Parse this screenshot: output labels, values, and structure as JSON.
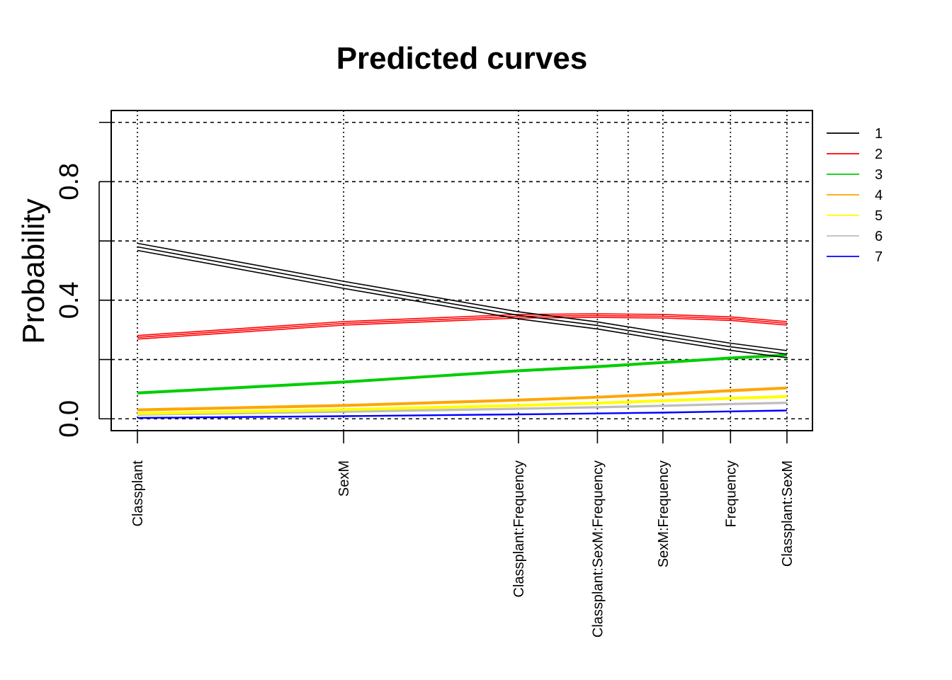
{
  "chart_data": {
    "type": "line",
    "title": "Predicted curves",
    "xlabel": "",
    "ylabel": "Probability",
    "ylim": [
      -0.04,
      1.04
    ],
    "yticks": [
      0.0,
      0.4,
      0.8
    ],
    "ytick_labels": [
      "0.0",
      "0.4",
      "0.8"
    ],
    "ygrid": [
      0.0,
      0.2,
      0.4,
      0.6,
      0.8,
      1.0
    ],
    "x_positions": [
      0.0,
      0.3175,
      0.5867,
      0.7082,
      0.809,
      0.9131,
      1.0
    ],
    "categories": [
      "Classplant",
      "SexM",
      "Classplant:Frequency",
      "Classplant:SexM:Frequency",
      "SexM:Frequency",
      "Frequency",
      "Classplant:SexM"
    ],
    "extra_vgrid": [
      0.7555
    ],
    "grid": true,
    "legend_position": "top-right",
    "series": [
      {
        "name": "1",
        "color": "#000000",
        "values": [
          0.58,
          0.452,
          0.349,
          0.315,
          0.279,
          0.243,
          0.218
        ],
        "band": 0.012
      },
      {
        "name": "2",
        "color": "#ff0000",
        "values": [
          0.275,
          0.322,
          0.346,
          0.348,
          0.346,
          0.338,
          0.322
        ],
        "band": 0.006
      },
      {
        "name": "3",
        "color": "#00cd00",
        "values": [
          0.087,
          0.124,
          0.162,
          0.176,
          0.19,
          0.205,
          0.215
        ],
        "band": 0.003
      },
      {
        "name": "4",
        "color": "#ffa500",
        "values": [
          0.03,
          0.045,
          0.063,
          0.073,
          0.083,
          0.095,
          0.104
        ],
        "band": 0.003
      },
      {
        "name": "5",
        "color": "#ffff00",
        "values": [
          0.018,
          0.031,
          0.045,
          0.053,
          0.061,
          0.069,
          0.075
        ],
        "band": 0.003
      },
      {
        "name": "6",
        "color": "#bebebe",
        "values": [
          0.014,
          0.024,
          0.034,
          0.039,
          0.044,
          0.05,
          0.054
        ],
        "band": 0.002
      },
      {
        "name": "7",
        "color": "#0000ff",
        "values": [
          0.003,
          0.009,
          0.015,
          0.018,
          0.021,
          0.025,
          0.028
        ],
        "band": 0.001
      }
    ]
  }
}
